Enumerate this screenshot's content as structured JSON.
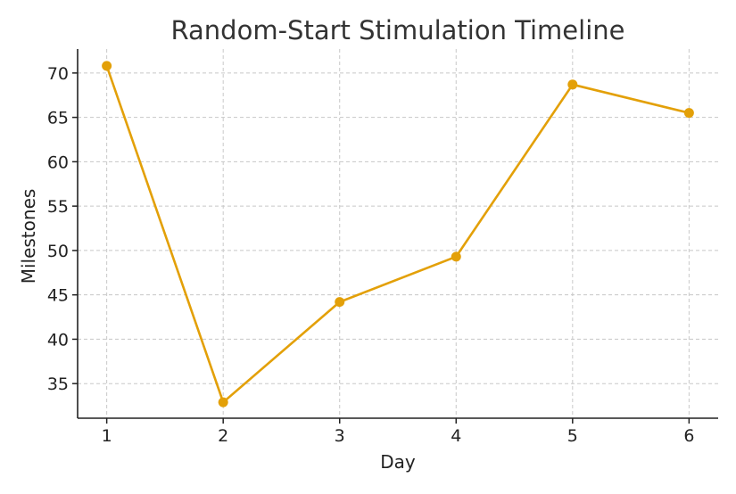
{
  "chart_data": {
    "type": "line",
    "title": "Random-Start Stimulation Timeline",
    "xlabel": "Day",
    "ylabel": "Milestones",
    "x": [
      1,
      2,
      3,
      4,
      5,
      6
    ],
    "series": [
      {
        "values": [
          70.8,
          32.9,
          44.2,
          49.3,
          68.7,
          65.5
        ],
        "color": "#E3A008"
      }
    ],
    "xticks": [
      1,
      2,
      3,
      4,
      5,
      6
    ],
    "yticks": [
      35,
      40,
      45,
      50,
      55,
      60,
      65,
      70
    ],
    "xlim": [
      0.75,
      6.25
    ],
    "ylim": [
      31.1,
      72.7
    ],
    "grid": true,
    "markers": true
  }
}
